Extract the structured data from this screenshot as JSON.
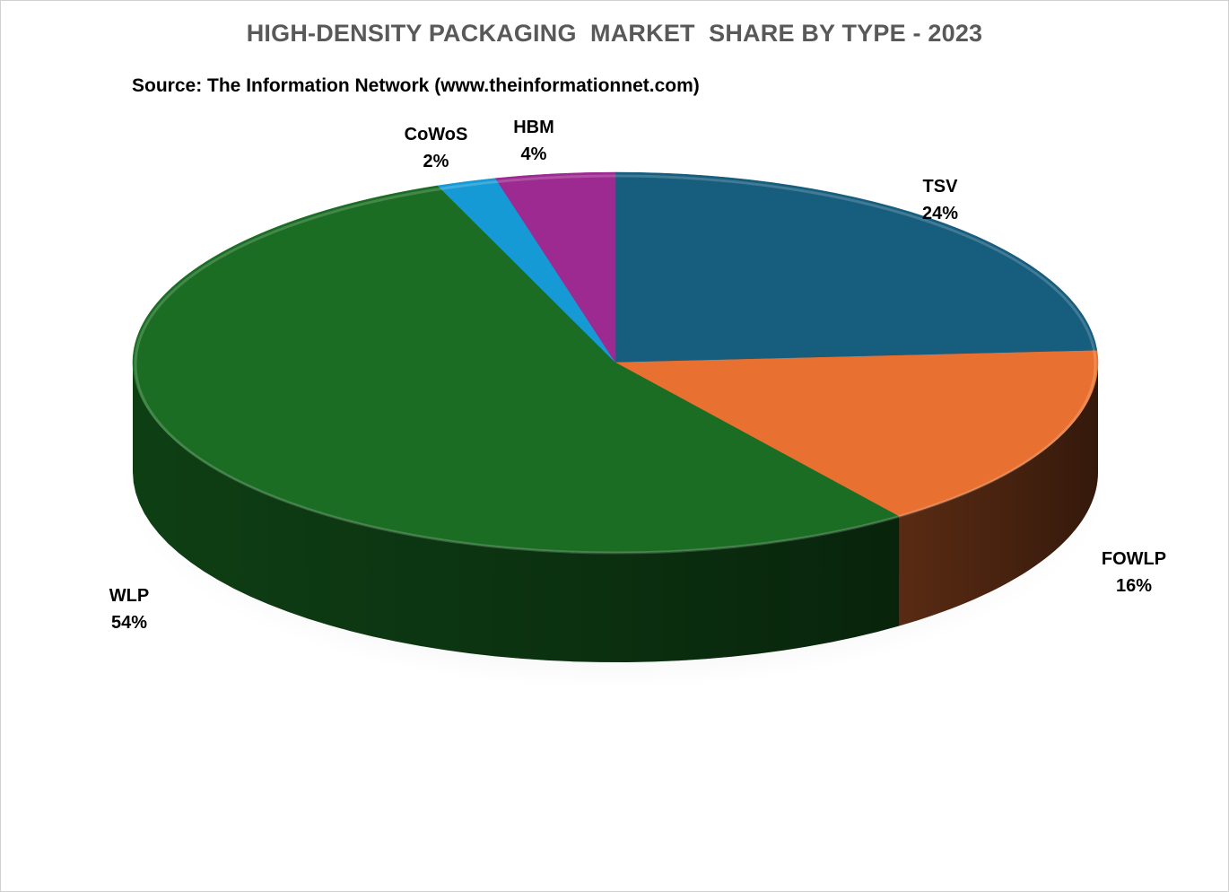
{
  "chart_data": {
    "type": "pie",
    "title": "HIGH-DENSITY PACKAGING  MARKET  SHARE BY TYPE - 2023",
    "subtitle": "Source: The Information Network (www.theinformationnet.com)",
    "slices": [
      {
        "name": "TSV",
        "value": 24,
        "label": "24%",
        "color": "#175d7e",
        "side_color": "#0e3a50"
      },
      {
        "name": "FOWLP",
        "value": 16,
        "label": "16%",
        "color": "#e87131",
        "side_color": "#5e2d14"
      },
      {
        "name": "WLP",
        "value": 54,
        "label": "54%",
        "color": "#1b6d24",
        "side_color": "#0f4215"
      },
      {
        "name": "CoWoS",
        "value": 2,
        "label": "2%",
        "color": "#159ad6",
        "side_color": "#0b5f86"
      },
      {
        "name": "HBM",
        "value": 4,
        "label": "4%",
        "color": "#9c2a91",
        "side_color": "#5f1958"
      }
    ],
    "style": "3d-pie",
    "legend": "none",
    "labels": "outside"
  }
}
